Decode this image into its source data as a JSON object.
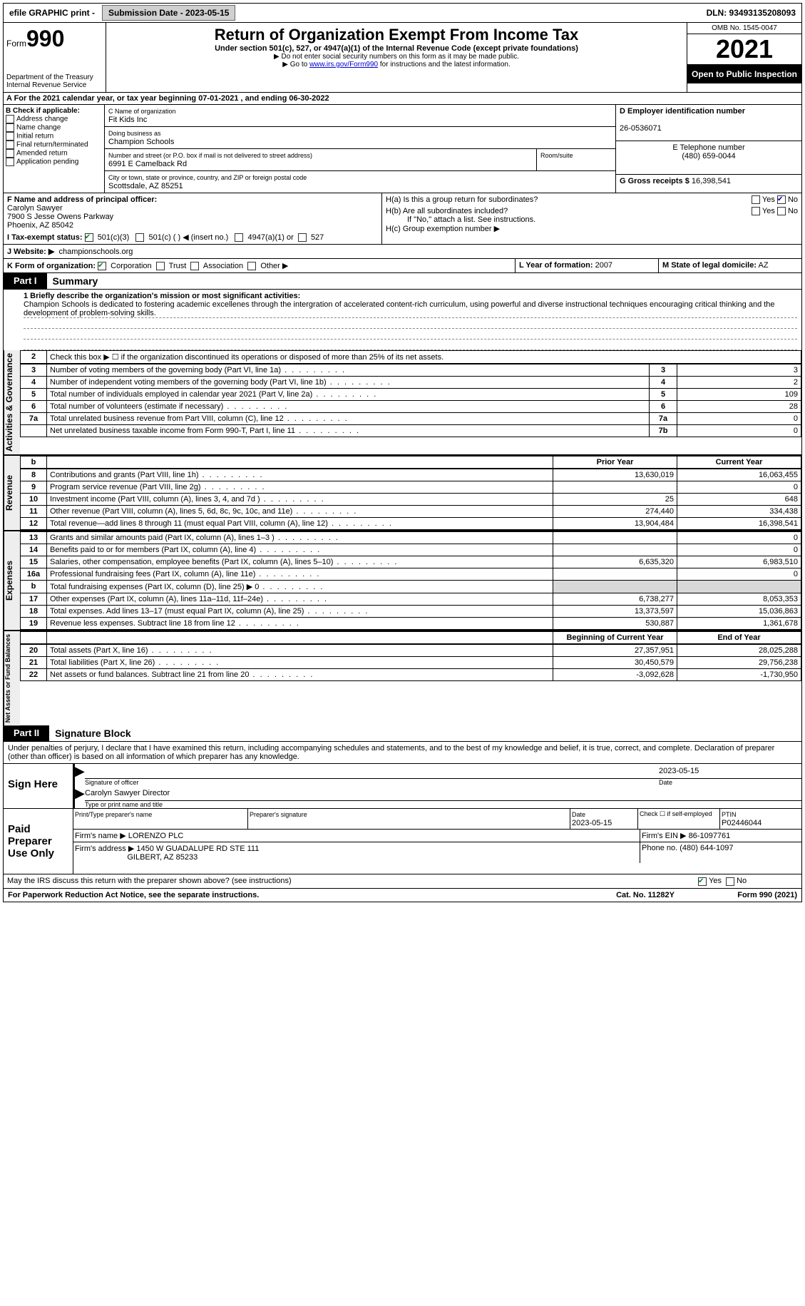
{
  "topbar": {
    "efile": "efile GRAPHIC print -",
    "submission": "Submission Date - 2023-05-15",
    "dln": "DLN: 93493135208093"
  },
  "header": {
    "form": "Form",
    "form_num": "990",
    "dept": "Department of the Treasury Internal Revenue Service",
    "title": "Return of Organization Exempt From Income Tax",
    "sub": "Under section 501(c), 527, or 4947(a)(1) of the Internal Revenue Code (except private foundations)",
    "note1": "▶ Do not enter social security numbers on this form as it may be made public.",
    "note2_pre": "▶ Go to ",
    "note2_link": "www.irs.gov/Form990",
    "note2_post": " for instructions and the latest information.",
    "omb": "OMB No. 1545-0047",
    "year": "2021",
    "otpi": "Open to Public Inspection"
  },
  "A": "A For the 2021 calendar year, or tax year beginning 07-01-2021   , and ending 06-30-2022",
  "B": {
    "label": "B Check if applicable:",
    "items": [
      "Address change",
      "Name change",
      "Initial return",
      "Final return/terminated",
      "Amended return",
      "Application pending"
    ]
  },
  "C": {
    "name_lbl": "C Name of organization",
    "name": "Fit Kids Inc",
    "dba_lbl": "Doing business as",
    "dba": "Champion Schools",
    "addr_lbl": "Number and street (or P.O. box if mail is not delivered to street address)",
    "room_lbl": "Room/suite",
    "addr": "6991 E Camelback Rd",
    "city_lbl": "City or town, state or province, country, and ZIP or foreign postal code",
    "city": "Scottsdale, AZ  85251"
  },
  "D": {
    "lbl": "D Employer identification number",
    "val": "26-0536071"
  },
  "E": {
    "lbl": "E Telephone number",
    "val": "(480) 659-0044"
  },
  "G": {
    "lbl": "G Gross receipts $",
    "val": "16,398,541"
  },
  "F": {
    "lbl": "F  Name and address of principal officer:",
    "name": "Carolyn Sawyer",
    "addr1": "7900 S Jesse Owens Parkway",
    "addr2": "Phoenix, AZ  85042"
  },
  "H": {
    "a": "H(a)  Is this a group return for subordinates?",
    "b": "H(b)  Are all subordinates included?",
    "b_note": "If \"No,\" attach a list. See instructions.",
    "c": "H(c)  Group exemption number ▶"
  },
  "I": {
    "lbl": "I    Tax-exempt status:",
    "o1": "501(c)(3)",
    "o2": "501(c) (   ) ◀ (insert no.)",
    "o3": "4947(a)(1) or",
    "o4": "527"
  },
  "J": {
    "lbl": "J   Website: ▶",
    "val": "championschools.org"
  },
  "K": {
    "lbl": "K Form of organization:",
    "o1": "Corporation",
    "o2": "Trust",
    "o3": "Association",
    "o4": "Other ▶"
  },
  "L": {
    "lbl": "L Year of formation:",
    "val": "2007"
  },
  "M": {
    "lbl": "M State of legal domicile:",
    "val": "AZ"
  },
  "part1": {
    "tab": "Part I",
    "title": "Summary",
    "line1_lbl": "1   Briefly describe the organization's mission or most significant activities:",
    "mission": "Champion Schools is dedicated to fostering academic excellenes through the intergration of accelerated content-rich curriculum, using powerful and diverse instructional techniques encouraging critical thinking and the development of problem-solving skills.",
    "line2": "Check this box ▶ ☐  if the organization discontinued its operations or disposed of more than 25% of its net assets.",
    "lines_ag": [
      {
        "n": "3",
        "t": "Number of voting members of the governing body (Part VI, line 1a)",
        "b": "3",
        "v": "3"
      },
      {
        "n": "4",
        "t": "Number of independent voting members of the governing body (Part VI, line 1b)",
        "b": "4",
        "v": "2"
      },
      {
        "n": "5",
        "t": "Total number of individuals employed in calendar year 2021 (Part V, line 2a)",
        "b": "5",
        "v": "109"
      },
      {
        "n": "6",
        "t": "Total number of volunteers (estimate if necessary)",
        "b": "6",
        "v": "28"
      },
      {
        "n": "7a",
        "t": "Total unrelated business revenue from Part VIII, column (C), line 12",
        "b": "7a",
        "v": "0"
      },
      {
        "n": "",
        "t": "Net unrelated business taxable income from Form 990-T, Part I, line 11",
        "b": "7b",
        "v": "0"
      }
    ],
    "py": "Prior Year",
    "cy": "Current Year",
    "rev": [
      {
        "n": "8",
        "t": "Contributions and grants (Part VIII, line 1h)",
        "p": "13,630,019",
        "c": "16,063,455"
      },
      {
        "n": "9",
        "t": "Program service revenue (Part VIII, line 2g)",
        "p": "",
        "c": "0"
      },
      {
        "n": "10",
        "t": "Investment income (Part VIII, column (A), lines 3, 4, and 7d )",
        "p": "25",
        "c": "648"
      },
      {
        "n": "11",
        "t": "Other revenue (Part VIII, column (A), lines 5, 6d, 8c, 9c, 10c, and 11e)",
        "p": "274,440",
        "c": "334,438"
      },
      {
        "n": "12",
        "t": "Total revenue—add lines 8 through 11 (must equal Part VIII, column (A), line 12)",
        "p": "13,904,484",
        "c": "16,398,541"
      }
    ],
    "exp": [
      {
        "n": "13",
        "t": "Grants and similar amounts paid (Part IX, column (A), lines 1–3 )",
        "p": "",
        "c": "0"
      },
      {
        "n": "14",
        "t": "Benefits paid to or for members (Part IX, column (A), line 4)",
        "p": "",
        "c": "0"
      },
      {
        "n": "15",
        "t": "Salaries, other compensation, employee benefits (Part IX, column (A), lines 5–10)",
        "p": "6,635,320",
        "c": "6,983,510"
      },
      {
        "n": "16a",
        "t": "Professional fundraising fees (Part IX, column (A), line 11e)",
        "p": "",
        "c": "0"
      },
      {
        "n": "b",
        "t": "Total fundraising expenses (Part IX, column (D), line 25) ▶ 0",
        "p": "GREY",
        "c": "GREY"
      },
      {
        "n": "17",
        "t": "Other expenses (Part IX, column (A), lines 11a–11d, 11f–24e)",
        "p": "6,738,277",
        "c": "8,053,353"
      },
      {
        "n": "18",
        "t": "Total expenses. Add lines 13–17 (must equal Part IX, column (A), line 25)",
        "p": "13,373,597",
        "c": "15,036,863"
      },
      {
        "n": "19",
        "t": "Revenue less expenses. Subtract line 18 from line 12",
        "p": "530,887",
        "c": "1,361,678"
      }
    ],
    "bcy": "Beginning of Current Year",
    "ecy": "End of Year",
    "net": [
      {
        "n": "20",
        "t": "Total assets (Part X, line 16)",
        "p": "27,357,951",
        "c": "28,025,288"
      },
      {
        "n": "21",
        "t": "Total liabilities (Part X, line 26)",
        "p": "30,450,579",
        "c": "29,756,238"
      },
      {
        "n": "22",
        "t": "Net assets or fund balances. Subtract line 21 from line 20",
        "p": "-3,092,628",
        "c": "-1,730,950"
      }
    ]
  },
  "vtabs": {
    "ag": "Activities & Governance",
    "rev": "Revenue",
    "exp": "Expenses",
    "net": "Net Assets or Fund Balances"
  },
  "part2": {
    "tab": "Part II",
    "title": "Signature Block",
    "decl": "Under penalties of perjury, I declare that I have examined this return, including accompanying schedules and statements, and to the best of my knowledge and belief, it is true, correct, and complete. Declaration of preparer (other than officer) is based on all information of which preparer has any knowledge.",
    "sign_here": "Sign Here",
    "sig_officer": "Signature of officer",
    "date": "Date",
    "date_val": "2023-05-15",
    "name_title": "Carolyn Sawyer  Director",
    "type_name": "Type or print name and title",
    "paid": "Paid Preparer Use Only",
    "pp_name_lbl": "Print/Type preparer's name",
    "pp_sig": "Preparer's signature",
    "pp_date_lbl": "Date",
    "pp_date": "2023-05-15",
    "pp_self": "Check ☐ if self-employed",
    "ptin_lbl": "PTIN",
    "ptin": "P02446044",
    "firm_name_lbl": "Firm's name    ▶",
    "firm_name": "LORENZO PLC",
    "firm_ein_lbl": "Firm's EIN ▶",
    "firm_ein": "86-1097761",
    "firm_addr_lbl": "Firm's address ▶",
    "firm_addr1": "1450 W GUADALUPE RD STE 111",
    "firm_addr2": "GILBERT, AZ  85233",
    "phone_lbl": "Phone no.",
    "phone": "(480) 644-1097",
    "discuss": "May the IRS discuss this return with the preparer shown above? (see instructions)"
  },
  "footer": {
    "l": "For Paperwork Reduction Act Notice, see the separate instructions.",
    "m": "Cat. No. 11282Y",
    "r": "Form 990 (2021)"
  }
}
